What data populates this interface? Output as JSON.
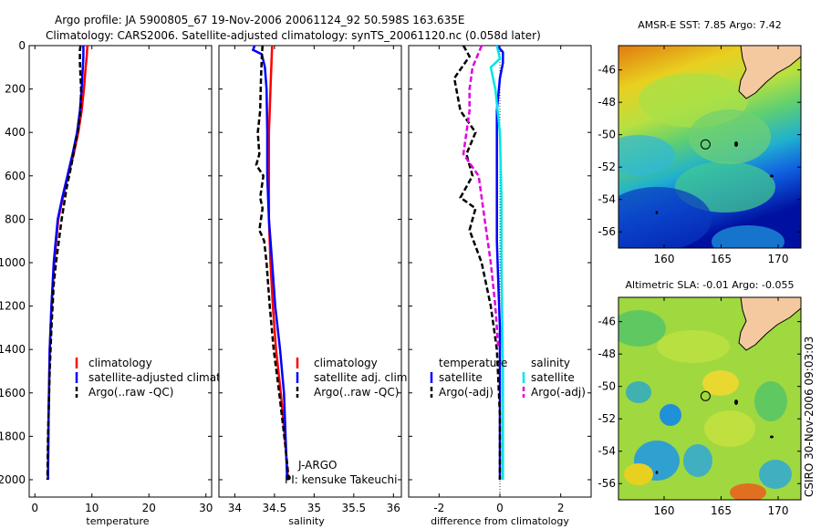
{
  "title_line1": "Argo profile: JA 5900805_67 19-Nov-2006 20061124_92 50.598S 163.635E",
  "title_line2": "Climatology: CARS2006. Satellite-adjusted climatology: synTS_20061120.nc (0.058d later)",
  "side_label": "CSIRO 30-Nov-2006 09:03:03",
  "institution_label": "J-ARGO",
  "pi_label": "PI: kensuke Takeuchi",
  "colors": {
    "climatology": "#ff0000",
    "satellite": "#0000ff",
    "argo": "#000000",
    "sal_satellite": "#00e5e5",
    "sal_argo": "#e000e0"
  },
  "chart_data": [
    {
      "type": "line",
      "xlabel": "temperature",
      "xlim": [
        -1,
        31
      ],
      "xticks": [
        0,
        10,
        20,
        30
      ],
      "ylim": [
        2080,
        0
      ],
      "yticks": [
        0,
        200,
        400,
        600,
        800,
        1000,
        1200,
        1400,
        1600,
        1800,
        2000
      ],
      "legend": [
        "climatology",
        "satellite-adjusted climatology",
        "Argo(..raw -QC)"
      ],
      "series": [
        {
          "name": "climatology",
          "color": "#ff0000",
          "dash": "solid",
          "x": [
            9.2,
            9.1,
            8.9,
            8.6,
            8.2,
            7.6,
            6.8,
            5.8,
            4.9,
            4.1,
            3.4,
            2.9,
            2.6,
            2.4,
            2.3
          ],
          "y": [
            0,
            50,
            100,
            200,
            300,
            400,
            500,
            600,
            700,
            800,
            1000,
            1200,
            1400,
            1700,
            2000
          ]
        },
        {
          "name": "satellite-adjusted climatology",
          "color": "#0000ff",
          "dash": "solid",
          "x": [
            8.5,
            8.5,
            8.4,
            8.2,
            7.9,
            7.4,
            6.6,
            5.7,
            4.8,
            4.0,
            3.3,
            2.9,
            2.6,
            2.4,
            2.3
          ],
          "y": [
            0,
            50,
            100,
            200,
            300,
            400,
            500,
            600,
            700,
            800,
            1000,
            1200,
            1400,
            1700,
            2000
          ]
        },
        {
          "name": "Argo(..raw -QC)",
          "color": "#000000",
          "dash": "dashed",
          "x": [
            8.0,
            7.9,
            7.9,
            8.1,
            8.0,
            7.5,
            7.1,
            6.4,
            5.6,
            5.0,
            4.7,
            3.7,
            3.3,
            2.9,
            2.6,
            2.3,
            2.2
          ],
          "y": [
            0,
            20,
            80,
            200,
            300,
            400,
            450,
            550,
            650,
            750,
            800,
            1000,
            1100,
            1300,
            1500,
            1800,
            2000
          ]
        }
      ]
    },
    {
      "type": "line",
      "xlabel": "salinity",
      "xlim": [
        33.8,
        36.1
      ],
      "xticks": [
        34,
        34.5,
        35,
        35.5,
        36
      ],
      "ylim": [
        2080,
        0
      ],
      "yticks": [
        0,
        200,
        400,
        600,
        800,
        1000,
        1200,
        1400,
        1600,
        1800,
        2000
      ],
      "legend": [
        "climatology",
        "satellite adj. clim.",
        "Argo(..raw -QC)"
      ],
      "series": [
        {
          "name": "climatology",
          "color": "#ff0000",
          "dash": "solid",
          "x": [
            34.47,
            34.46,
            34.45,
            34.44,
            34.43,
            34.43,
            34.43,
            34.45,
            34.48,
            34.52,
            34.58,
            34.63,
            34.67
          ],
          "y": [
            0,
            100,
            200,
            300,
            400,
            600,
            800,
            1000,
            1200,
            1400,
            1600,
            1800,
            2000
          ]
        },
        {
          "name": "satellite adj. clim.",
          "color": "#0000ff",
          "dash": "solid",
          "x": [
            34.25,
            34.23,
            34.34,
            34.38,
            34.4,
            34.41,
            34.41,
            34.43,
            34.47,
            34.51,
            34.57,
            34.62,
            34.66
          ],
          "y": [
            0,
            20,
            40,
            100,
            200,
            400,
            600,
            800,
            1000,
            1200,
            1400,
            1600,
            2000
          ]
        },
        {
          "name": "Argo(..raw -QC)",
          "color": "#000000",
          "dash": "dashed",
          "x": [
            34.35,
            34.34,
            34.33,
            34.32,
            34.29,
            34.31,
            34.27,
            34.36,
            34.32,
            34.35,
            34.31,
            34.37,
            34.4,
            34.44,
            34.49,
            34.56,
            34.64,
            34.68
          ],
          "y": [
            0,
            50,
            150,
            300,
            400,
            500,
            550,
            600,
            700,
            750,
            850,
            900,
            1000,
            1200,
            1400,
            1600,
            1850,
            2000
          ]
        }
      ]
    },
    {
      "type": "line",
      "xlabel": "difference from climatology",
      "xlim": [
        -3,
        3
      ],
      "xticks": [
        -2,
        0,
        2
      ],
      "ylim": [
        2080,
        0
      ],
      "yticks": [
        0,
        200,
        400,
        600,
        800,
        1000,
        1200,
        1400,
        1600,
        1800,
        2000
      ],
      "legend_groups": [
        {
          "title": "temperature",
          "entries": [
            "satellite",
            "Argo(-adj)"
          ]
        },
        {
          "title": "salinity",
          "entries": [
            "satellite",
            "Argo(-adj)"
          ]
        }
      ],
      "series": [
        {
          "name": "temperature satellite",
          "color": "#0000ff",
          "dash": "solid",
          "x": [
            -0.1,
            0.1,
            0.1,
            0.0,
            -0.1,
            -0.1,
            -0.1,
            -0.1,
            -0.05,
            0.0,
            0.0,
            0.0
          ],
          "y": [
            0,
            30,
            80,
            150,
            300,
            500,
            700,
            900,
            1100,
            1300,
            1600,
            2000
          ]
        },
        {
          "name": "temperature Argo(-adj)",
          "color": "#000000",
          "dash": "dashed",
          "x": [
            -1.2,
            -1.0,
            -1.5,
            -1.3,
            -0.8,
            -1.1,
            -0.9,
            -1.3,
            -0.8,
            -1.0,
            -0.6,
            -0.3,
            -0.1,
            0.0,
            0.0
          ],
          "y": [
            0,
            50,
            150,
            300,
            400,
            500,
            600,
            700,
            750,
            850,
            1000,
            1200,
            1400,
            1700,
            2000
          ]
        },
        {
          "name": "salinity satellite",
          "color": "#00e5e5",
          "dash": "solid",
          "x": [
            -0.1,
            0.0,
            -0.3,
            -0.15,
            0.0,
            0.05,
            0.05,
            0.1,
            0.1
          ],
          "y": [
            0,
            60,
            100,
            200,
            400,
            700,
            1000,
            1500,
            2000
          ]
        },
        {
          "name": "salinity Argo(-adj)",
          "color": "#e000e0",
          "dash": "dashed",
          "x": [
            -0.6,
            -0.9,
            -1.0,
            -1.0,
            -1.2,
            -0.7,
            -0.5,
            -0.3,
            -0.15,
            -0.05
          ],
          "y": [
            0,
            100,
            200,
            300,
            500,
            600,
            800,
            1000,
            1200,
            1400
          ]
        }
      ]
    },
    {
      "type": "heatmap",
      "title": "AMSR-E SST: 7.85 Argo: 7.42",
      "xlim": [
        156,
        172
      ],
      "xticks": [
        160,
        165,
        170
      ],
      "ylim": [
        -57,
        -44.5
      ],
      "yticks": [
        -46,
        -48,
        -50,
        -52,
        -54,
        -56
      ],
      "marker": {
        "lon": 163.635,
        "lat": -50.598
      }
    },
    {
      "type": "heatmap",
      "title": "Altimetric SLA: -0.01 Argo: -0.055",
      "xlim": [
        156,
        172
      ],
      "xticks": [
        160,
        165,
        170
      ],
      "ylim": [
        -57,
        -44.5
      ],
      "yticks": [
        -46,
        -48,
        -50,
        -52,
        -54,
        -56
      ],
      "marker": {
        "lon": 163.635,
        "lat": -50.598
      }
    }
  ]
}
